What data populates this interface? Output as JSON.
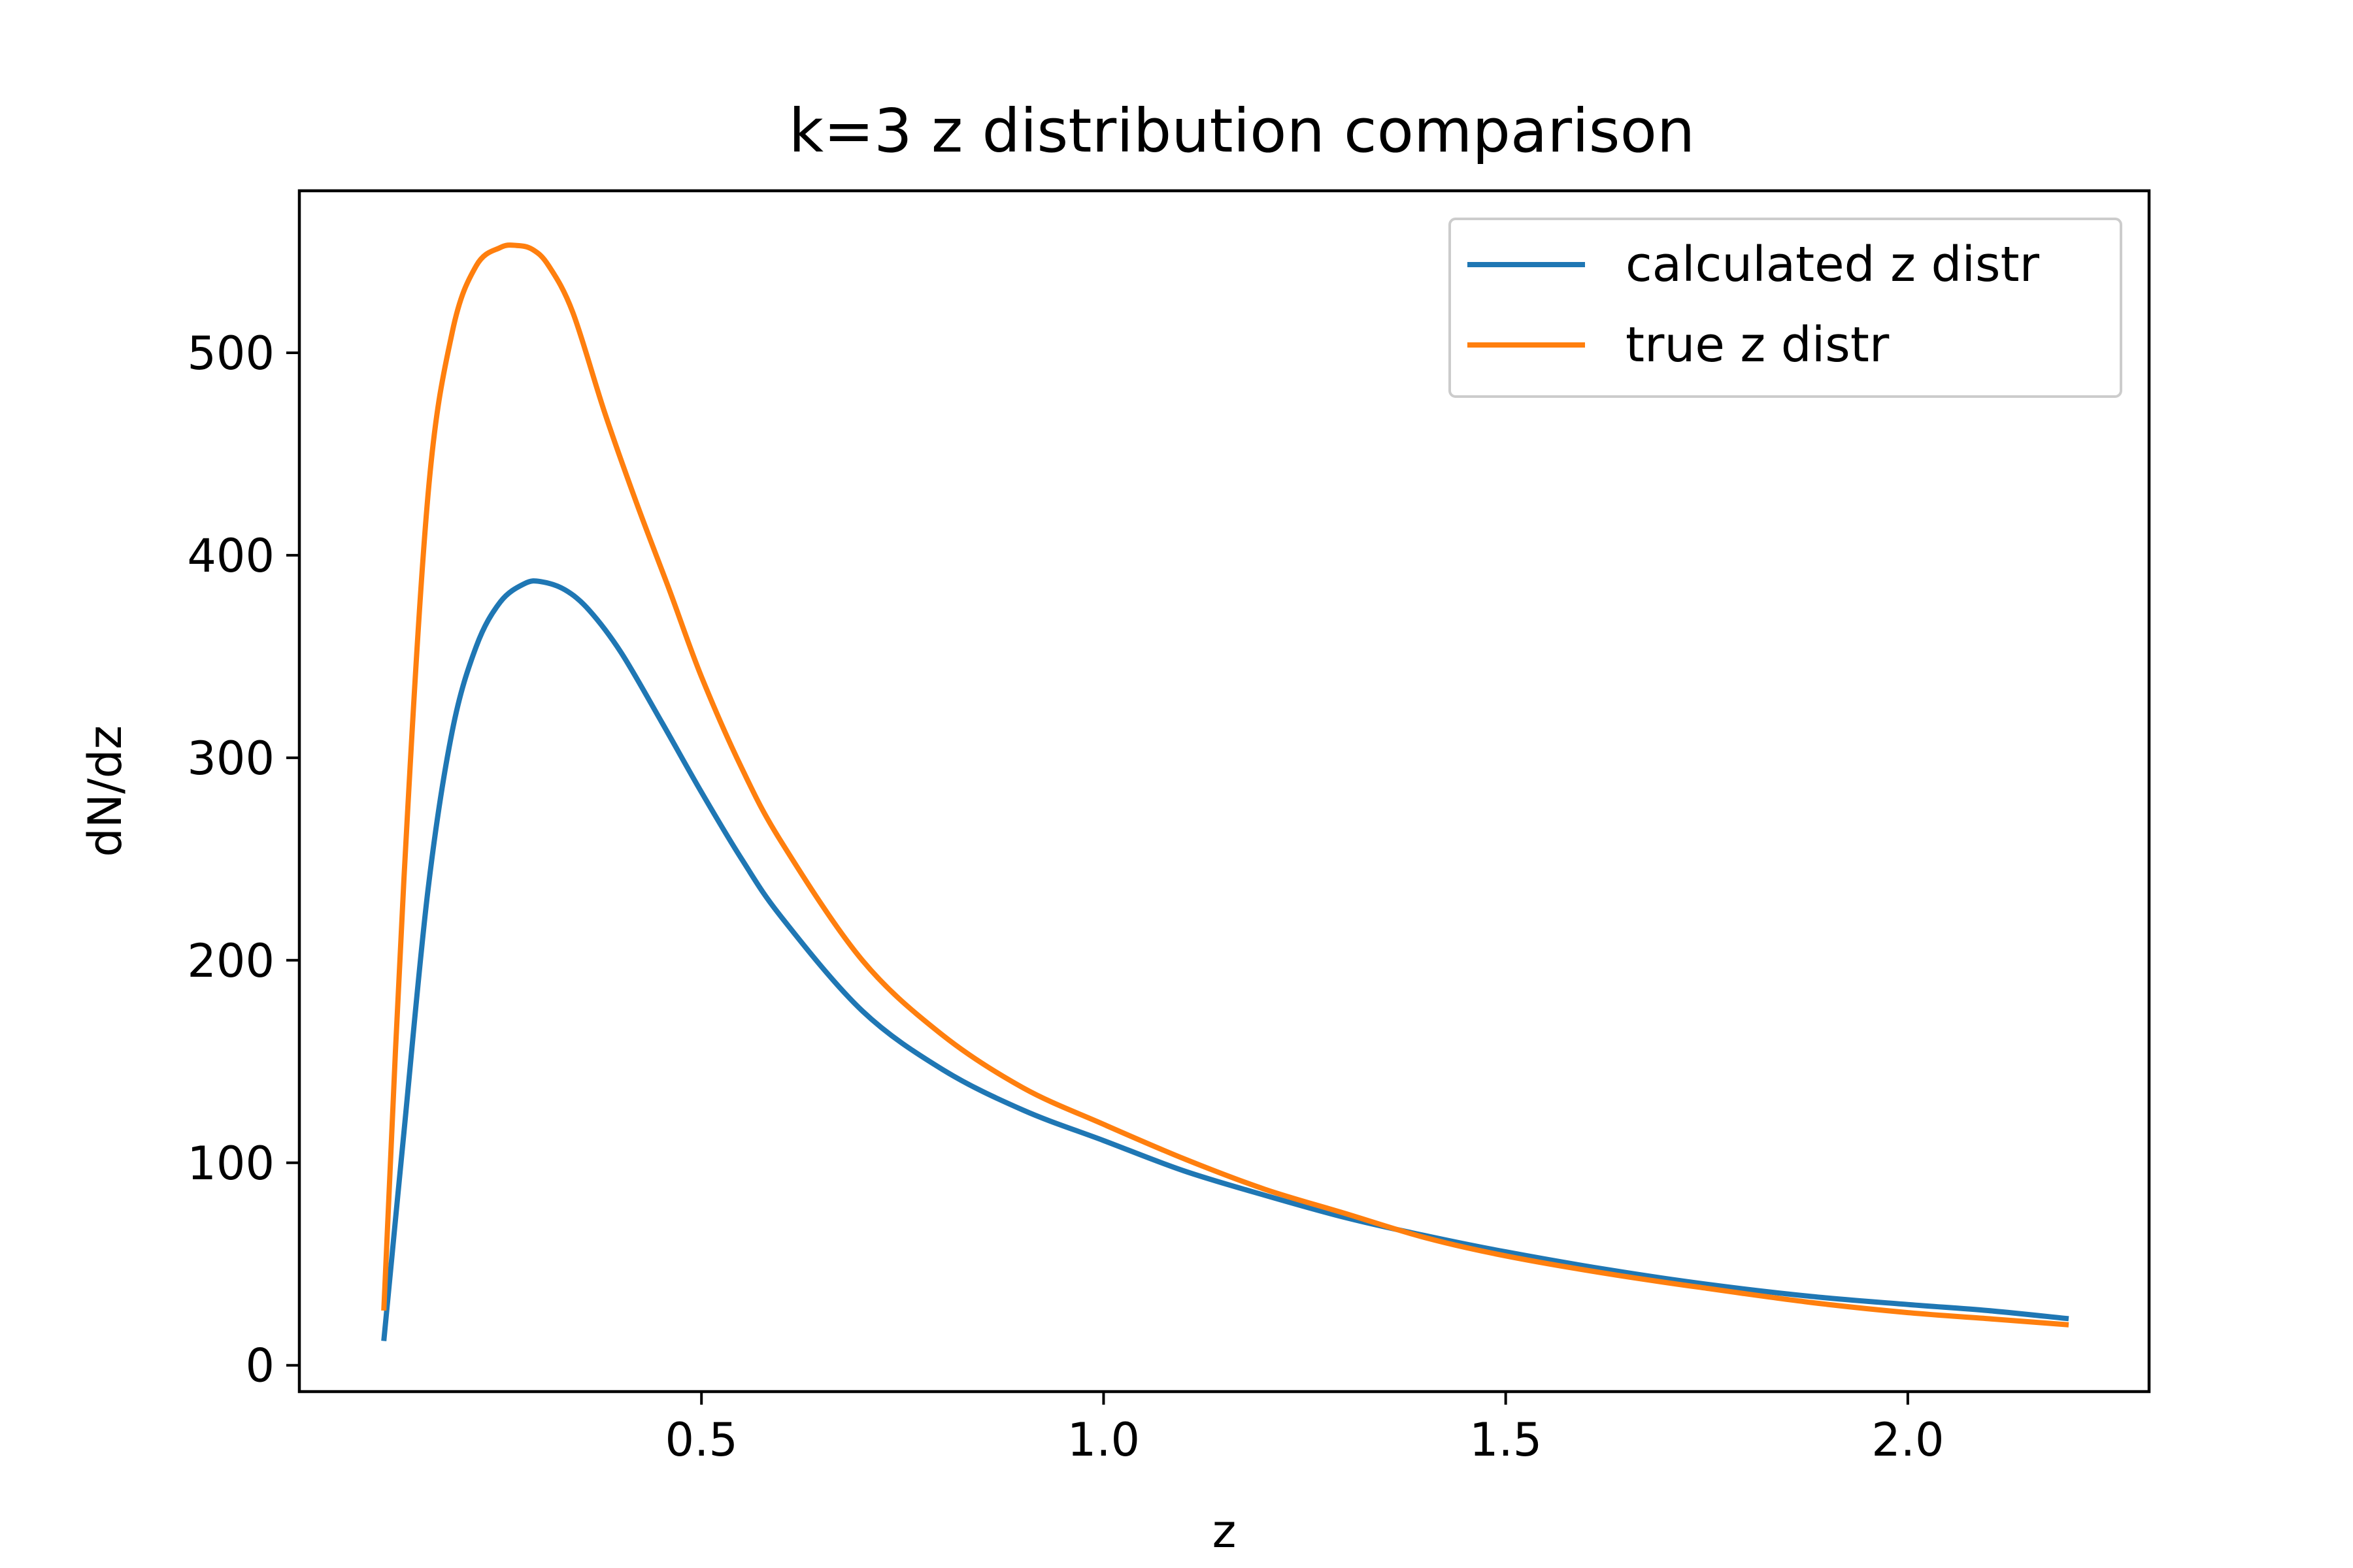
{
  "chart_data": {
    "type": "line",
    "title": "k=3 z distribution comparison",
    "xlabel": "z",
    "ylabel": "dN/dz",
    "xlim": [
      0.0,
      2.3
    ],
    "ylim": [
      -13,
      580
    ],
    "xticks": [
      0.5,
      1.0,
      1.5,
      2.0
    ],
    "xtick_labels": [
      "0.5",
      "1.0",
      "1.5",
      "2.0"
    ],
    "yticks": [
      0,
      100,
      200,
      300,
      400,
      500
    ],
    "ytick_labels": [
      "0",
      "100",
      "200",
      "300",
      "400",
      "500"
    ],
    "grid": false,
    "legend_position": "top-right",
    "series": [
      {
        "name": "calculated z distr",
        "color": "#1f77b4",
        "x": [
          0.105,
          0.13,
          0.16,
          0.19,
          0.22,
          0.25,
          0.28,
          0.3,
          0.33,
          0.36,
          0.4,
          0.45,
          0.5,
          0.55,
          0.6,
          0.7,
          0.8,
          0.9,
          1.0,
          1.1,
          1.2,
          1.3,
          1.4,
          1.5,
          1.63,
          1.75,
          1.88,
          2.0,
          2.1,
          2.2
        ],
        "y": [
          12,
          115,
          235,
          313,
          355,
          377,
          386,
          387,
          383,
          373,
          352,
          318,
          283,
          250,
          221,
          175,
          146,
          126,
          111,
          96,
          84,
          73,
          64,
          56,
          47,
          40,
          34,
          30,
          27,
          23
        ]
      },
      {
        "name": "true z distr",
        "color": "#ff7f0e",
        "x": [
          0.105,
          0.13,
          0.16,
          0.19,
          0.22,
          0.25,
          0.27,
          0.29,
          0.31,
          0.34,
          0.38,
          0.42,
          0.46,
          0.5,
          0.55,
          0.6,
          0.7,
          0.8,
          0.9,
          1.0,
          1.1,
          1.2,
          1.3,
          1.4,
          1.5,
          1.63,
          1.75,
          1.88,
          2.0,
          2.1,
          2.2
        ],
        "y": [
          27,
          240,
          430,
          510,
          543,
          552,
          553,
          551,
          543,
          520,
          470,
          425,
          383,
          340,
          295,
          258,
          200,
          163,
          137,
          119,
          102,
          87,
          75,
          63,
          54,
          45,
          38,
          31,
          26,
          23,
          20
        ]
      }
    ]
  }
}
